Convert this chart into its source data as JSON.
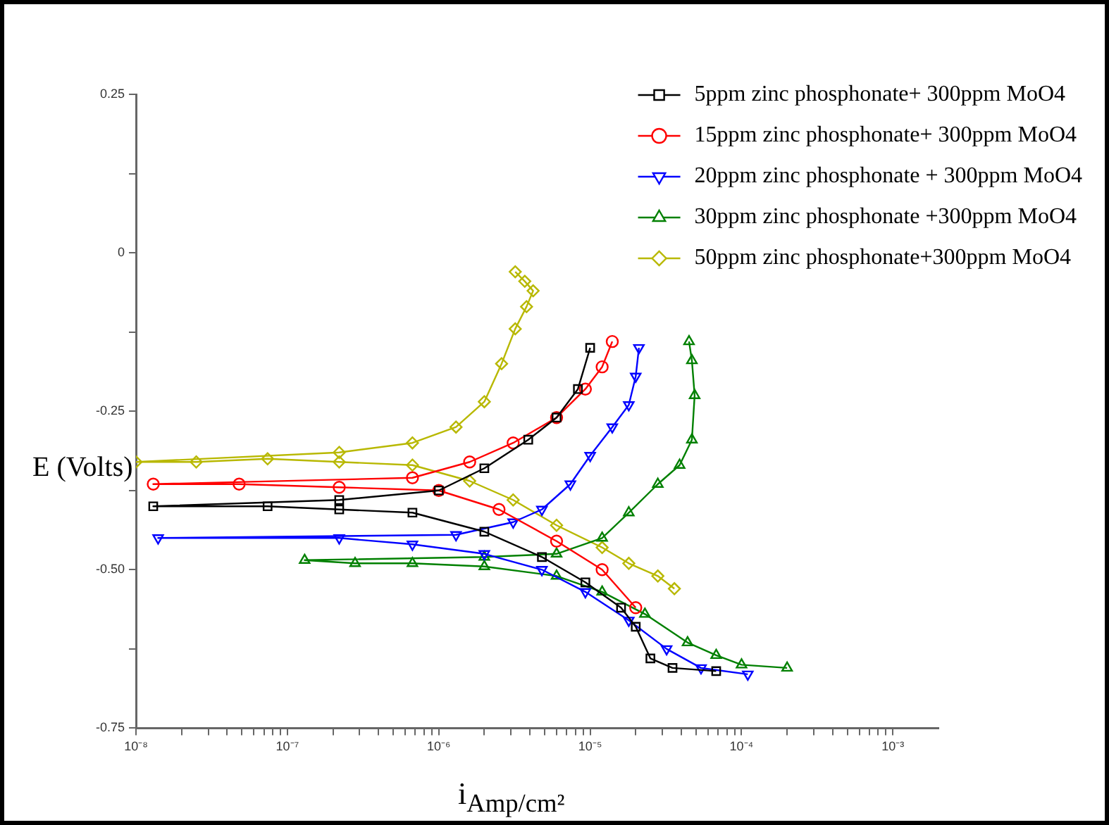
{
  "chart_data": {
    "type": "line",
    "xlabel": "i$_{Amp/cm²}$",
    "ylabel": "E (Volts)",
    "log": "x",
    "grid": false,
    "legend": "top right",
    "line_style": "solid",
    "xlim": [
      1e-08,
      0.002
    ],
    "ylim": [
      -0.75,
      0.25
    ],
    "xticks": [
      {
        "value": 1e-08,
        "label": "10⁻⁸"
      },
      {
        "value": 2e-08,
        "label": null
      },
      {
        "value": 3e-08,
        "label": null
      },
      {
        "value": 4e-08,
        "label": null
      },
      {
        "value": 5e-08,
        "label": null
      },
      {
        "value": 6e-08,
        "label": null
      },
      {
        "value": 7e-08,
        "label": null
      },
      {
        "value": 8e-08,
        "label": null
      },
      {
        "value": 9e-08,
        "label": null
      },
      {
        "value": 1e-07,
        "label": "10⁻⁷"
      },
      {
        "value": 2e-07,
        "label": null
      },
      {
        "value": 3e-07,
        "label": null
      },
      {
        "value": 4e-07,
        "label": null
      },
      {
        "value": 5e-07,
        "label": null
      },
      {
        "value": 6e-07,
        "label": null
      },
      {
        "value": 7e-07,
        "label": null
      },
      {
        "value": 8e-07,
        "label": null
      },
      {
        "value": 9e-07,
        "label": null
      },
      {
        "value": 1e-06,
        "label": "10⁻⁶"
      },
      {
        "value": 2e-06,
        "label": null
      },
      {
        "value": 3e-06,
        "label": null
      },
      {
        "value": 4e-06,
        "label": null
      },
      {
        "value": 5e-06,
        "label": null
      },
      {
        "value": 6e-06,
        "label": null
      },
      {
        "value": 7e-06,
        "label": null
      },
      {
        "value": 8e-06,
        "label": null
      },
      {
        "value": 9e-06,
        "label": null
      },
      {
        "value": 1e-05,
        "label": "10⁻⁵"
      },
      {
        "value": 2e-05,
        "label": null
      },
      {
        "value": 3e-05,
        "label": null
      },
      {
        "value": 4e-05,
        "label": null
      },
      {
        "value": 5e-05,
        "label": null
      },
      {
        "value": 6e-05,
        "label": null
      },
      {
        "value": 7e-05,
        "label": null
      },
      {
        "value": 8e-05,
        "label": null
      },
      {
        "value": 9e-05,
        "label": null
      },
      {
        "value": 0.0001,
        "label": "10⁻⁴"
      },
      {
        "value": 0.0002,
        "label": null
      },
      {
        "value": 0.0003,
        "label": null
      },
      {
        "value": 0.0004,
        "label": null
      },
      {
        "value": 0.0005,
        "label": null
      },
      {
        "value": 0.0006,
        "label": null
      },
      {
        "value": 0.0007,
        "label": null
      },
      {
        "value": 0.0008,
        "label": null
      },
      {
        "value": 0.0009,
        "label": null
      },
      {
        "value": 0.001,
        "label": "10⁻³"
      }
    ],
    "yticks": [
      {
        "value": -0.75,
        "label": "-0.75"
      },
      {
        "value": -0.625,
        "label": null
      },
      {
        "value": -0.5,
        "label": "-0.50"
      },
      {
        "value": -0.375,
        "label": null
      },
      -0.25,
      {
        "value": -0.125,
        "label": null
      },
      0,
      {
        "value": 0.125,
        "label": null
      },
      0.25
    ],
    "series": [
      {
        "name": "5ppm zinc phosphonate+ 300ppm MoO4",
        "color": "#000000",
        "marker": "square",
        "x": [
          6.8e-05,
          3.5e-05,
          2.5e-05,
          2e-05,
          1.6e-05,
          9.3e-06,
          4.8e-06,
          2e-06,
          6.7e-07,
          2.2e-07,
          7.4e-08,
          1.3e-08,
          2.2e-07,
          1e-06,
          2e-06,
          3.9e-06,
          6e-06,
          8.3e-06,
          1e-05
        ],
        "values": [
          -0.66,
          -0.655,
          -0.64,
          -0.59,
          -0.56,
          -0.52,
          -0.48,
          -0.44,
          -0.41,
          -0.405,
          -0.4,
          -0.4,
          -0.39,
          -0.375,
          -0.34,
          -0.295,
          -0.26,
          -0.215,
          -0.15
        ]
      },
      {
        "name": "15ppm zinc phosphonate+ 300ppm MoO4",
        "color": "#ff0000",
        "marker": "circle",
        "x": [
          2e-05,
          1.2e-05,
          6e-06,
          2.5e-06,
          1e-06,
          2.2e-07,
          4.8e-08,
          1.3e-08,
          6.7e-07,
          1.6e-06,
          3.1e-06,
          6e-06,
          9.3e-06,
          1.2e-05,
          1.4e-05
        ],
        "values": [
          -0.56,
          -0.5,
          -0.455,
          -0.405,
          -0.375,
          -0.37,
          -0.365,
          -0.365,
          -0.355,
          -0.33,
          -0.3,
          -0.26,
          -0.215,
          -0.18,
          -0.14
        ]
      },
      {
        "name": "20ppm zinc phosphonate + 300ppm MoO4",
        "color": "#0000ff",
        "marker": "triangle-down",
        "x": [
          0.00011,
          5.4e-05,
          3.2e-05,
          1.8e-05,
          9.3e-06,
          4.8e-06,
          2e-06,
          6.7e-07,
          2.2e-07,
          1.4e-08,
          1.3e-06,
          3.1e-06,
          4.8e-06,
          7.4e-06,
          1e-05,
          1.4e-05,
          1.8e-05,
          2e-05,
          2.1e-05
        ],
        "values": [
          -0.665,
          -0.655,
          -0.625,
          -0.58,
          -0.535,
          -0.5,
          -0.475,
          -0.46,
          -0.45,
          -0.45,
          -0.445,
          -0.425,
          -0.405,
          -0.365,
          -0.32,
          -0.275,
          -0.24,
          -0.195,
          -0.15
        ]
      },
      {
        "name": "30ppm zinc phosphonate +300ppm MoO4",
        "color": "#008000",
        "marker": "triangle",
        "x": [
          0.0002,
          0.0001,
          6.8e-05,
          4.4e-05,
          2.3e-05,
          1.2e-05,
          6e-06,
          2e-06,
          6.7e-07,
          2.8e-07,
          1.3e-07,
          2e-06,
          6e-06,
          1.2e-05,
          1.8e-05,
          2.8e-05,
          3.9e-05,
          4.7e-05,
          4.9e-05,
          4.7e-05,
          4.5e-05
        ],
        "values": [
          -0.655,
          -0.65,
          -0.635,
          -0.615,
          -0.57,
          -0.535,
          -0.51,
          -0.495,
          -0.49,
          -0.49,
          -0.485,
          -0.48,
          -0.475,
          -0.45,
          -0.41,
          -0.365,
          -0.335,
          -0.295,
          -0.225,
          -0.17,
          -0.14
        ]
      },
      {
        "name": "50ppm zinc phosphonate+300ppm MoO4",
        "color": "#b8b800",
        "marker": "diamond",
        "x": [
          3.6e-05,
          2.8e-05,
          1.8e-05,
          1.2e-05,
          6e-06,
          3.1e-06,
          1.6e-06,
          6.7e-07,
          2.2e-07,
          7.4e-08,
          2.5e-08,
          1e-08,
          2.2e-07,
          6.7e-07,
          1.3e-06,
          2e-06,
          2.6e-06,
          3.2e-06,
          3.8e-06,
          4.2e-06,
          3.7e-06,
          3.2e-06
        ],
        "values": [
          -0.53,
          -0.51,
          -0.49,
          -0.465,
          -0.43,
          -0.39,
          -0.36,
          -0.335,
          -0.33,
          -0.325,
          -0.33,
          -0.33,
          -0.315,
          -0.3,
          -0.275,
          -0.235,
          -0.175,
          -0.12,
          -0.085,
          -0.06,
          -0.045,
          -0.03
        ]
      }
    ]
  }
}
